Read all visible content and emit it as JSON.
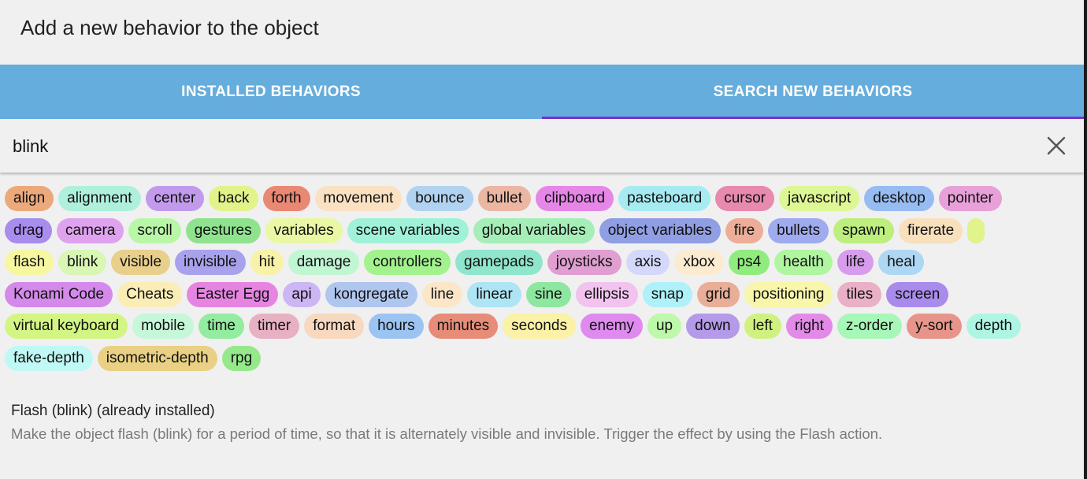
{
  "dialog": {
    "title": "Add a new behavior to the object"
  },
  "tabs": [
    {
      "label": "INSTALLED BEHAVIORS",
      "active": false
    },
    {
      "label": "SEARCH NEW BEHAVIORS",
      "active": true
    }
  ],
  "search": {
    "value": "blink",
    "clear_icon": "close-icon"
  },
  "tag_rows": [
    [
      [
        "align",
        "#eba97c"
      ],
      [
        "alignment",
        "#aef0dc"
      ],
      [
        "center",
        "#c29aec"
      ],
      [
        "back",
        "#e2f38a"
      ],
      [
        "forth",
        "#e98873"
      ],
      [
        "movement",
        "#f9e1c2"
      ],
      [
        "bounce",
        "#b1d3f1"
      ],
      [
        "bullet",
        "#ebb6a2"
      ],
      [
        "clipboard",
        "#e687e8"
      ],
      [
        "pasteboard",
        "#a7ebf2"
      ],
      [
        "cursor",
        "#e78aae"
      ],
      [
        "javascript",
        "#def795"
      ],
      [
        "desktop",
        "#97bcf2"
      ],
      [
        "pointer",
        "#e7a0d8"
      ]
    ],
    [
      [
        "drag",
        "#a88cee"
      ],
      [
        "camera",
        "#dea2ee"
      ],
      [
        "scroll",
        "#b9f7a8"
      ],
      [
        "gestures",
        "#8fe38f"
      ],
      [
        "variables",
        "#eaf7a4"
      ],
      [
        "scene variables",
        "#9ff2d8"
      ],
      [
        "global variables",
        "#a5eeb8"
      ],
      [
        "object variables",
        "#909ee3"
      ],
      [
        "fire",
        "#ecae98"
      ],
      [
        "bullets",
        "#9fabee"
      ],
      [
        "spawn",
        "#bdee7e"
      ],
      [
        "firerate",
        "#f8e0bd"
      ],
      [
        "",
        "#e0f38c"
      ]
    ],
    [
      [
        "flash",
        "#f7f7a2"
      ],
      [
        "blink",
        "#d8f6b4"
      ],
      [
        "visible",
        "#e8cf8c"
      ],
      [
        "invisible",
        "#a8a2ec"
      ],
      [
        "hit",
        "#f7f2a8"
      ],
      [
        "damage",
        "#c1f6d3"
      ],
      [
        "controllers",
        "#a2f28e"
      ],
      [
        "gamepads",
        "#8fe6cd"
      ],
      [
        "joysticks",
        "#e09ed1"
      ],
      [
        "axis",
        "#d4d9fb"
      ],
      [
        "xbox",
        "#fbebd0"
      ],
      [
        "ps4",
        "#90ec7e"
      ],
      [
        "health",
        "#b0f5a0"
      ],
      [
        "life",
        "#d89cec"
      ],
      [
        "heal",
        "#aed7f3"
      ]
    ],
    [
      [
        "Konami Code",
        "#d48aea"
      ],
      [
        "Cheats",
        "#fbedb6"
      ],
      [
        "Easter Egg",
        "#e685e1"
      ],
      [
        "api",
        "#ccb6f3"
      ],
      [
        "kongregate",
        "#afc6ee"
      ],
      [
        "line",
        "#fbe6c8"
      ],
      [
        "linear",
        "#aee4f4"
      ],
      [
        "sine",
        "#8ee7a0"
      ],
      [
        "ellipsis",
        "#f2c3ef"
      ],
      [
        "snap",
        "#aef1f9"
      ],
      [
        "grid",
        "#e9ae98"
      ],
      [
        "positioning",
        "#f8f6aa"
      ],
      [
        "tiles",
        "#e9b0c6"
      ],
      [
        "screen",
        "#a98bec"
      ]
    ],
    [
      [
        "virtual keyboard",
        "#d3f584"
      ],
      [
        "mobile",
        "#c5f7d8"
      ],
      [
        "time",
        "#93ec9f"
      ],
      [
        "timer",
        "#e8b0c3"
      ],
      [
        "format",
        "#f7d9bf"
      ],
      [
        "hours",
        "#9bc4f2"
      ],
      [
        "minutes",
        "#e68c78"
      ],
      [
        "seconds",
        "#fbf1a7"
      ],
      [
        "enemy",
        "#de8aef"
      ],
      [
        "up",
        "#bef8ab"
      ],
      [
        "down",
        "#b49ae8"
      ],
      [
        "left",
        "#d0f17f"
      ],
      [
        "right",
        "#e38ae8"
      ],
      [
        "z-order",
        "#a7f7b8"
      ],
      [
        "y-sort",
        "#e7958a"
      ],
      [
        "depth",
        "#aef6e3"
      ]
    ],
    [
      [
        "fake-depth",
        "#bff8f4"
      ],
      [
        "isometric-depth",
        "#e9d084"
      ],
      [
        "rpg",
        "#96e98a"
      ]
    ]
  ],
  "result": {
    "title": "Flash (blink) (already installed)",
    "description": "Make the object flash (blink) for a period of time, so that it is alternately visible and invisible. Trigger the effect by using the Flash action."
  }
}
